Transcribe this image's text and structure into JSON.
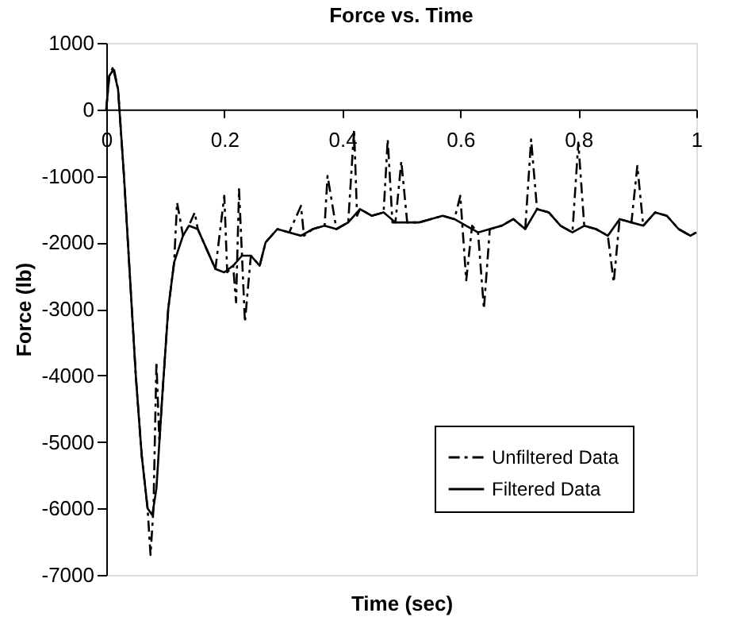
{
  "chart_data": {
    "type": "line",
    "title": "Force vs. Time",
    "xlabel": "Time (sec)",
    "ylabel": "Force (lb)",
    "xlim": [
      0,
      1
    ],
    "xticks": [
      0,
      0.2,
      0.4,
      0.6,
      0.8,
      1
    ],
    "ylim": [
      -7000,
      1000
    ],
    "yticks": [
      -7000,
      -6000,
      -5000,
      -4000,
      -3000,
      -2000,
      -1000,
      0,
      1000
    ],
    "grid": false,
    "legend": "bottom right",
    "marker": "none",
    "series": [
      {
        "name": "Unfiltered Data",
        "color": "#000000",
        "line_style": "dashdot",
        "x": [
          0,
          0.005,
          0.012,
          0.02,
          0.03,
          0.04,
          0.05,
          0.06,
          0.07,
          0.075,
          0.08,
          0.085,
          0.09,
          0.095,
          0.105,
          0.115,
          0.12,
          0.13,
          0.14,
          0.15,
          0.155,
          0.17,
          0.185,
          0.2,
          0.205,
          0.215,
          0.22,
          0.225,
          0.23,
          0.235,
          0.245,
          0.26,
          0.27,
          0.29,
          0.31,
          0.33,
          0.335,
          0.35,
          0.37,
          0.375,
          0.39,
          0.41,
          0.42,
          0.425,
          0.43,
          0.45,
          0.47,
          0.477,
          0.485,
          0.49,
          0.5,
          0.51,
          0.53,
          0.55,
          0.57,
          0.59,
          0.6,
          0.61,
          0.62,
          0.63,
          0.64,
          0.65,
          0.67,
          0.69,
          0.71,
          0.72,
          0.73,
          0.75,
          0.77,
          0.79,
          0.8,
          0.81,
          0.83,
          0.85,
          0.86,
          0.87,
          0.89,
          0.9,
          0.91,
          0.93,
          0.95,
          0.97,
          0.99,
          1.0
        ],
        "values": [
          0,
          500,
          650,
          300,
          -1000,
          -2500,
          -4000,
          -5200,
          -6000,
          -6700,
          -6000,
          -3800,
          -5000,
          -4300,
          -3000,
          -2300,
          -1400,
          -1900,
          -1750,
          -1550,
          -1800,
          -2100,
          -2400,
          -1300,
          -2450,
          -2350,
          -2900,
          -1200,
          -2200,
          -3200,
          -2200,
          -2350,
          -2000,
          -1800,
          -1850,
          -1450,
          -1900,
          -1800,
          -1750,
          -1000,
          -1800,
          -1700,
          -300,
          -1600,
          -1500,
          -1600,
          -1550,
          -450,
          -1700,
          -1700,
          -780,
          -1700,
          -1700,
          -1650,
          -1600,
          -1650,
          -1300,
          -2570,
          -1750,
          -1850,
          -3000,
          -1800,
          -1750,
          -1650,
          -1800,
          -450,
          -1500,
          -1550,
          -1750,
          -1850,
          -500,
          -1750,
          -1800,
          -1900,
          -2600,
          -1650,
          -1700,
          -850,
          -1750,
          -1550,
          -1600,
          -1800,
          -1900,
          -1850
        ]
      },
      {
        "name": "Filtered Data",
        "color": "#000000",
        "line_style": "solid",
        "x": [
          0,
          0.005,
          0.012,
          0.02,
          0.03,
          0.04,
          0.05,
          0.06,
          0.07,
          0.078,
          0.085,
          0.095,
          0.105,
          0.115,
          0.13,
          0.14,
          0.155,
          0.17,
          0.185,
          0.2,
          0.215,
          0.23,
          0.245,
          0.26,
          0.27,
          0.29,
          0.31,
          0.33,
          0.35,
          0.37,
          0.39,
          0.41,
          0.43,
          0.45,
          0.47,
          0.49,
          0.51,
          0.53,
          0.55,
          0.57,
          0.59,
          0.61,
          0.63,
          0.65,
          0.67,
          0.69,
          0.71,
          0.73,
          0.75,
          0.77,
          0.79,
          0.81,
          0.83,
          0.85,
          0.87,
          0.89,
          0.91,
          0.93,
          0.95,
          0.97,
          0.99,
          1.0
        ],
        "values": [
          0,
          500,
          600,
          300,
          -1000,
          -2500,
          -4000,
          -5200,
          -6000,
          -6100,
          -5700,
          -4300,
          -3000,
          -2300,
          -1900,
          -1750,
          -1800,
          -2100,
          -2400,
          -2450,
          -2350,
          -2200,
          -2200,
          -2350,
          -2000,
          -1800,
          -1850,
          -1900,
          -1800,
          -1750,
          -1800,
          -1700,
          -1500,
          -1600,
          -1550,
          -1700,
          -1700,
          -1700,
          -1650,
          -1600,
          -1650,
          -1750,
          -1850,
          -1800,
          -1750,
          -1650,
          -1800,
          -1500,
          -1550,
          -1750,
          -1850,
          -1750,
          -1800,
          -1900,
          -1650,
          -1700,
          -1750,
          -1550,
          -1600,
          -1800,
          -1900,
          -1850
        ]
      }
    ]
  }
}
